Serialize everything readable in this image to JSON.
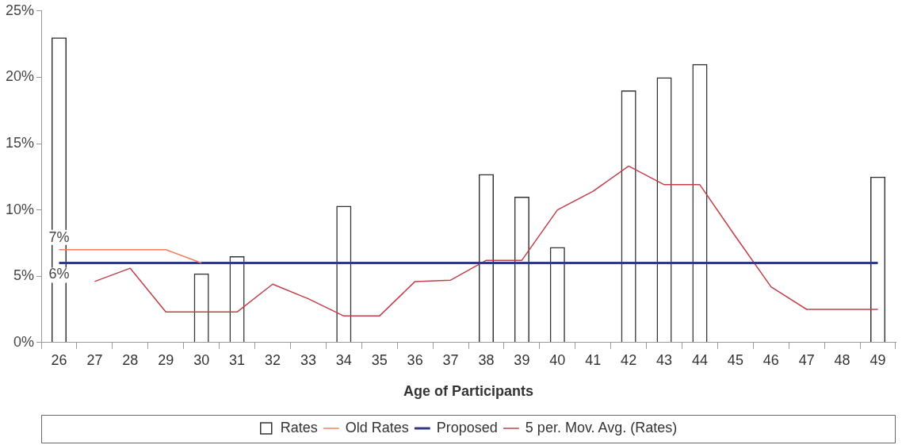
{
  "chart_data": {
    "type": "bar",
    "xlabel": "Age of Participants",
    "categories": [
      "26",
      "27",
      "28",
      "29",
      "30",
      "31",
      "32",
      "33",
      "34",
      "35",
      "36",
      "37",
      "38",
      "39",
      "40",
      "41",
      "42",
      "43",
      "44",
      "45",
      "46",
      "47",
      "48",
      "49"
    ],
    "series": [
      {
        "name": "Rates",
        "color": "#333333",
        "values": [
          23,
          null,
          null,
          null,
          5.2,
          6.5,
          null,
          null,
          10.3,
          null,
          null,
          null,
          12.7,
          11,
          7.2,
          null,
          19,
          20,
          21,
          null,
          null,
          null,
          null,
          12.5
        ]
      },
      {
        "name": "Old Rates",
        "type": "line",
        "color": "#f08060",
        "values": [
          7,
          7,
          7,
          7,
          6,
          null,
          null,
          null,
          null,
          null,
          null,
          null,
          null,
          null,
          null,
          null,
          null,
          null,
          null,
          null,
          null,
          null,
          null,
          null
        ],
        "value_labels": [
          "7%",
          null,
          null,
          null,
          null,
          null,
          null,
          null,
          null,
          null,
          null,
          null,
          null,
          null,
          null,
          null,
          null,
          null,
          null,
          null,
          null,
          null,
          null,
          null
        ]
      },
      {
        "name": "Proposed",
        "type": "line",
        "color": "#2e3a87",
        "values": [
          6,
          6,
          6,
          6,
          6,
          6,
          6,
          6,
          6,
          6,
          6,
          6,
          6,
          6,
          6,
          6,
          6,
          6,
          6,
          6,
          6,
          6,
          6,
          6
        ],
        "value_labels": [
          "6%",
          null,
          null,
          null,
          null,
          null,
          null,
          null,
          null,
          null,
          null,
          null,
          null,
          null,
          null,
          null,
          null,
          null,
          null,
          null,
          null,
          null,
          null,
          null
        ]
      },
      {
        "name": "5 per. Mov. Avg. (Rates)",
        "type": "line",
        "color": "#c0404a",
        "values": [
          null,
          4.6,
          5.6,
          2.3,
          2.3,
          2.3,
          4.4,
          3.3,
          2.0,
          2.0,
          4.6,
          4.7,
          6.2,
          6.2,
          10,
          11.4,
          13.3,
          11.9,
          11.9,
          8.0,
          4.2,
          2.5,
          2.5,
          2.5
        ]
      }
    ],
    "ylim": [
      0,
      25
    ],
    "yticks": [
      {
        "value": 0,
        "label": "0%"
      },
      {
        "value": 5,
        "label": "5%"
      },
      {
        "value": 10,
        "label": "10%"
      },
      {
        "value": 15,
        "label": "15%"
      },
      {
        "value": 20,
        "label": "20%"
      },
      {
        "value": 25,
        "label": "25%"
      }
    ],
    "grid": false,
    "legend": "bottom",
    "marker": "none",
    "line_style": "solid"
  }
}
